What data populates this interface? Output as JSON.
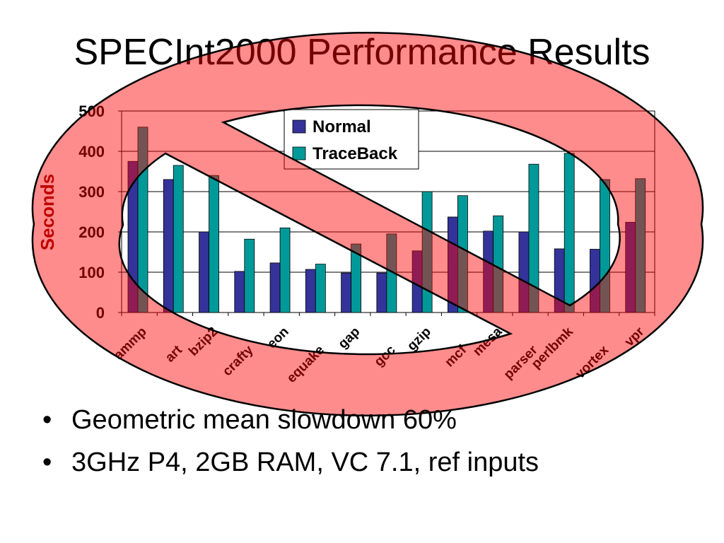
{
  "slide": {
    "title": "SPECInt2000 Performance Results",
    "bullets": [
      "Geometric mean slowdown 60%",
      "3GHz P4, 2GB RAM, VC 7.1, ref inputs"
    ]
  },
  "colors": {
    "normal": "#333399",
    "traceback": "#009999",
    "prohibition_sign": "#ff0000",
    "ylabel": "#8b0000"
  },
  "chart_data": {
    "type": "bar",
    "title": "",
    "xlabel": "",
    "ylabel": "Seconds",
    "ylim": [
      0,
      500
    ],
    "yticks": [
      0,
      100,
      200,
      300,
      400,
      500
    ],
    "grid": true,
    "legend_position": "top-center",
    "categories": [
      "ammp",
      "art",
      "bzip2",
      "crafty",
      "eon",
      "equake",
      "gap",
      "gcc",
      "gzip",
      "mcf",
      "mesa",
      "parser",
      "perlbmk",
      "vortex",
      "vpr"
    ],
    "series": [
      {
        "name": "Normal",
        "values": [
          375,
          330,
          200,
          102,
          123,
          107,
          98,
          98,
          153,
          237,
          202,
          200,
          158,
          157,
          224
        ]
      },
      {
        "name": "TraceBack",
        "values": [
          460,
          365,
          340,
          182,
          210,
          120,
          170,
          195,
          300,
          290,
          240,
          368,
          395,
          330,
          332
        ]
      }
    ]
  }
}
